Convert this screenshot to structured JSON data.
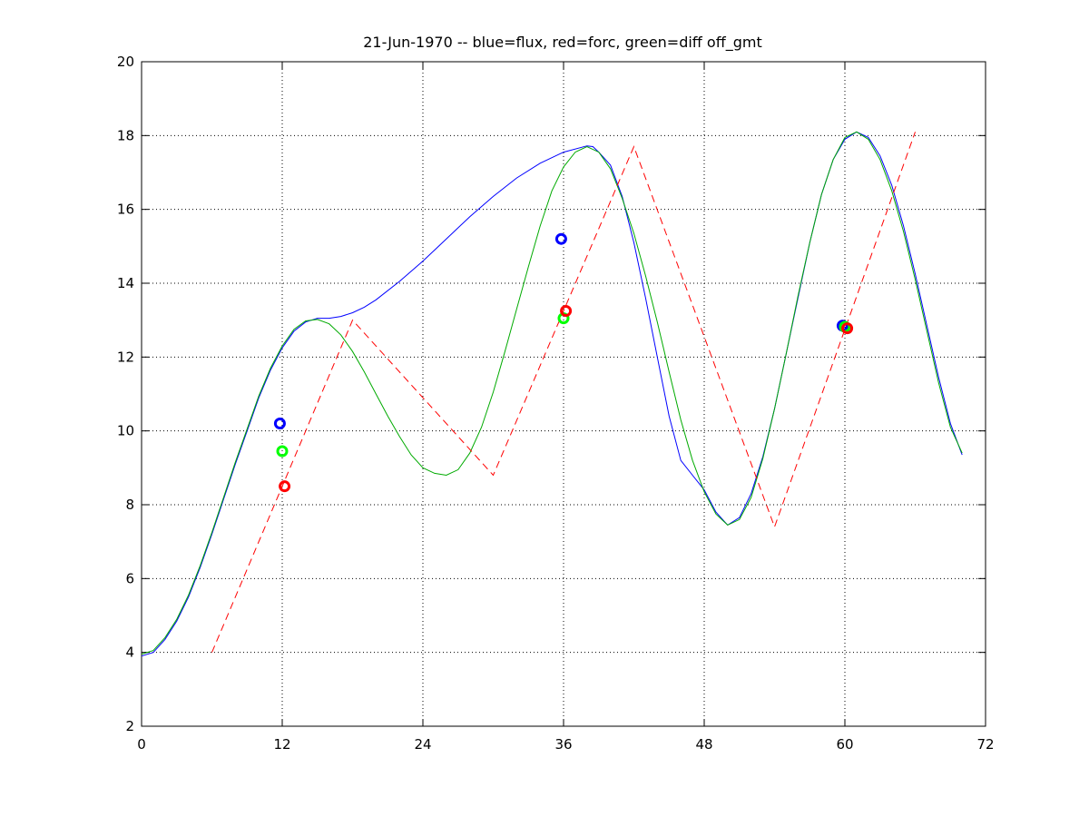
{
  "chart_data": {
    "type": "line",
    "title": "21-Jun-1970 -- blue=flux, red=forc, green=diff off_gmt",
    "xlabel": "",
    "ylabel": "",
    "xlim": [
      0,
      72
    ],
    "ylim": [
      2,
      20
    ],
    "xticks": [
      0,
      12,
      24,
      36,
      48,
      60,
      72
    ],
    "yticks": [
      2,
      4,
      6,
      8,
      10,
      12,
      14,
      16,
      18,
      20
    ],
    "grid": true,
    "grid_style": "dotted",
    "series": [
      {
        "color": "#0000ff",
        "style": "solid",
        "points": [
          [
            0,
            3.9
          ],
          [
            1,
            4.0
          ],
          [
            2,
            4.35
          ],
          [
            3,
            4.85
          ],
          [
            4,
            5.5
          ],
          [
            5,
            6.3
          ],
          [
            6,
            7.2
          ],
          [
            7,
            8.15
          ],
          [
            8,
            9.1
          ],
          [
            9,
            10.0
          ],
          [
            10,
            10.9
          ],
          [
            11,
            11.65
          ],
          [
            12,
            12.25
          ],
          [
            13,
            12.7
          ],
          [
            14,
            12.95
          ],
          [
            15,
            13.05
          ],
          [
            16,
            13.05
          ],
          [
            17,
            13.1
          ],
          [
            18,
            13.2
          ],
          [
            19,
            13.35
          ],
          [
            20,
            13.55
          ],
          [
            22,
            14.05
          ],
          [
            24,
            14.6
          ],
          [
            26,
            15.2
          ],
          [
            28,
            15.8
          ],
          [
            30,
            16.35
          ],
          [
            32,
            16.85
          ],
          [
            34,
            17.25
          ],
          [
            36,
            17.55
          ],
          [
            38,
            17.72
          ],
          [
            38.5,
            17.7
          ],
          [
            39,
            17.55
          ],
          [
            40,
            17.2
          ],
          [
            41,
            16.35
          ],
          [
            42,
            15.1
          ],
          [
            43,
            13.6
          ],
          [
            44,
            12.0
          ],
          [
            45,
            10.4
          ],
          [
            46,
            9.2
          ],
          [
            47,
            8.8
          ],
          [
            48,
            8.4
          ],
          [
            49,
            7.8
          ],
          [
            50,
            7.45
          ],
          [
            51,
            7.65
          ],
          [
            52,
            8.3
          ],
          [
            53,
            9.3
          ],
          [
            54,
            10.6
          ],
          [
            55,
            12.1
          ],
          [
            56,
            13.6
          ],
          [
            57,
            15.1
          ],
          [
            58,
            16.4
          ],
          [
            59,
            17.35
          ],
          [
            60,
            17.9
          ],
          [
            61,
            18.1
          ],
          [
            62,
            17.95
          ],
          [
            63,
            17.45
          ],
          [
            64,
            16.65
          ],
          [
            65,
            15.55
          ],
          [
            66,
            14.25
          ],
          [
            67,
            12.85
          ],
          [
            68,
            11.45
          ],
          [
            69,
            10.2
          ],
          [
            70,
            9.35
          ]
        ]
      },
      {
        "color": "#00aa00",
        "style": "solid",
        "points": [
          [
            0,
            3.95
          ],
          [
            1,
            4.05
          ],
          [
            2,
            4.4
          ],
          [
            3,
            4.9
          ],
          [
            4,
            5.55
          ],
          [
            5,
            6.35
          ],
          [
            6,
            7.25
          ],
          [
            7,
            8.2
          ],
          [
            8,
            9.15
          ],
          [
            9,
            10.05
          ],
          [
            10,
            10.95
          ],
          [
            11,
            11.7
          ],
          [
            12,
            12.3
          ],
          [
            13,
            12.75
          ],
          [
            14,
            12.98
          ],
          [
            15,
            13.02
          ],
          [
            16,
            12.9
          ],
          [
            17,
            12.6
          ],
          [
            18,
            12.15
          ],
          [
            19,
            11.6
          ],
          [
            20,
            11.0
          ],
          [
            21,
            10.4
          ],
          [
            22,
            9.85
          ],
          [
            23,
            9.35
          ],
          [
            24,
            9.0
          ],
          [
            25,
            8.85
          ],
          [
            26,
            8.8
          ],
          [
            27,
            8.95
          ],
          [
            28,
            9.4
          ],
          [
            29,
            10.1
          ],
          [
            30,
            11.05
          ],
          [
            31,
            12.15
          ],
          [
            32,
            13.3
          ],
          [
            33,
            14.45
          ],
          [
            34,
            15.55
          ],
          [
            35,
            16.5
          ],
          [
            36,
            17.15
          ],
          [
            37,
            17.55
          ],
          [
            38,
            17.7
          ],
          [
            39,
            17.55
          ],
          [
            40,
            17.1
          ],
          [
            41,
            16.3
          ],
          [
            42,
            15.35
          ],
          [
            43,
            14.2
          ],
          [
            44,
            12.95
          ],
          [
            45,
            11.6
          ],
          [
            46,
            10.3
          ],
          [
            47,
            9.2
          ],
          [
            48,
            8.35
          ],
          [
            49,
            7.75
          ],
          [
            50,
            7.45
          ],
          [
            51,
            7.6
          ],
          [
            52,
            8.2
          ],
          [
            53,
            9.25
          ],
          [
            54,
            10.6
          ],
          [
            55,
            12.1
          ],
          [
            56,
            13.65
          ],
          [
            57,
            15.1
          ],
          [
            58,
            16.4
          ],
          [
            59,
            17.35
          ],
          [
            60,
            17.95
          ],
          [
            61,
            18.1
          ],
          [
            62,
            17.9
          ],
          [
            63,
            17.35
          ],
          [
            64,
            16.5
          ],
          [
            65,
            15.4
          ],
          [
            66,
            14.1
          ],
          [
            67,
            12.7
          ],
          [
            68,
            11.3
          ],
          [
            69,
            10.1
          ],
          [
            70,
            9.4
          ]
        ]
      },
      {
        "color": "#ff0000",
        "style": "dashed",
        "points": [
          [
            6,
            4.0
          ],
          [
            18,
            13.0
          ],
          [
            30,
            8.8
          ],
          [
            42,
            17.7
          ],
          [
            54,
            7.4
          ],
          [
            66,
            18.1
          ]
        ]
      }
    ],
    "markers": [
      {
        "color": "#0000ff",
        "x": 11.8,
        "y": 10.2
      },
      {
        "color": "#00ff00",
        "x": 12.0,
        "y": 9.45
      },
      {
        "color": "#ff0000",
        "x": 12.2,
        "y": 8.5
      },
      {
        "color": "#0000ff",
        "x": 35.8,
        "y": 15.2
      },
      {
        "color": "#00ff00",
        "x": 36.0,
        "y": 13.05
      },
      {
        "color": "#ff0000",
        "x": 36.2,
        "y": 13.25
      },
      {
        "color": "#0000ff",
        "x": 59.8,
        "y": 12.85
      },
      {
        "color": "#00ff00",
        "x": 60.0,
        "y": 12.82
      },
      {
        "color": "#ff0000",
        "x": 60.2,
        "y": 12.78
      }
    ]
  }
}
